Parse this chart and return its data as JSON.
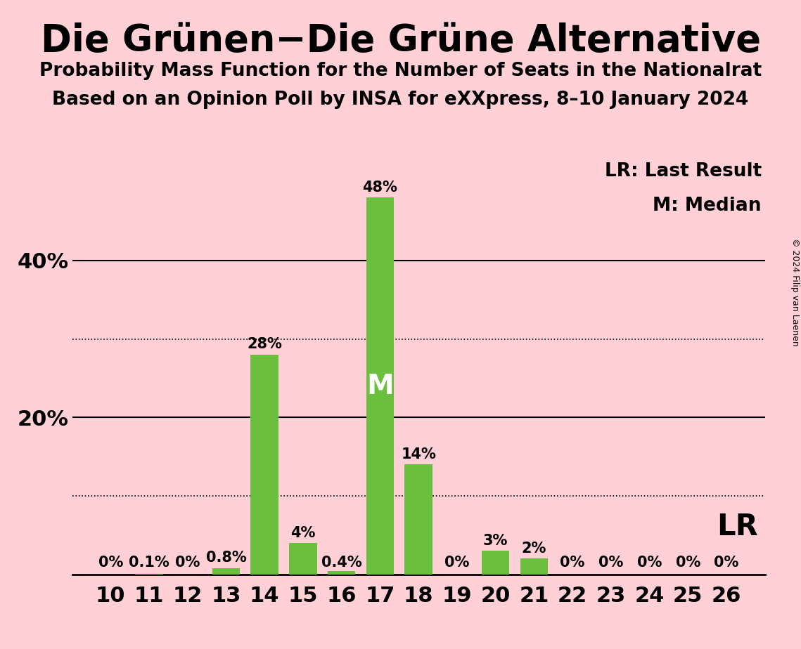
{
  "title": "Die Grünen−Die Grüne Alternative",
  "subtitle1": "Probability Mass Function for the Number of Seats in the Nationalrat",
  "subtitle2": "Based on an Opinion Poll by INSA for eXXpress, 8–10 January 2024",
  "seats": [
    10,
    11,
    12,
    13,
    14,
    15,
    16,
    17,
    18,
    19,
    20,
    21,
    22,
    23,
    24,
    25,
    26
  ],
  "probabilities": [
    0.0,
    0.1,
    0.0,
    0.8,
    28.0,
    4.0,
    0.4,
    48.0,
    14.0,
    0.0,
    3.0,
    2.0,
    0.0,
    0.0,
    0.0,
    0.0,
    0.0
  ],
  "bar_color": "#6BBF3E",
  "background_color": "#FFD0D5",
  "median_seat": 17,
  "solid_gridlines": [
    20,
    40
  ],
  "dotted_gridlines": [
    10,
    30
  ],
  "ytick_labels_show": [
    20,
    40
  ],
  "copyright_text": "© 2024 Filip van Laenen",
  "lr_label": "LR: Last Result",
  "m_label": "M: Median",
  "lr_annotation": "LR",
  "m_annotation": "M",
  "title_fontsize": 38,
  "subtitle_fontsize": 19,
  "bar_label_fontsize": 15,
  "axis_tick_fontsize": 22,
  "legend_fontsize": 19,
  "annotation_fontsize": 28,
  "lr_fontsize": 30,
  "copyright_fontsize": 9
}
